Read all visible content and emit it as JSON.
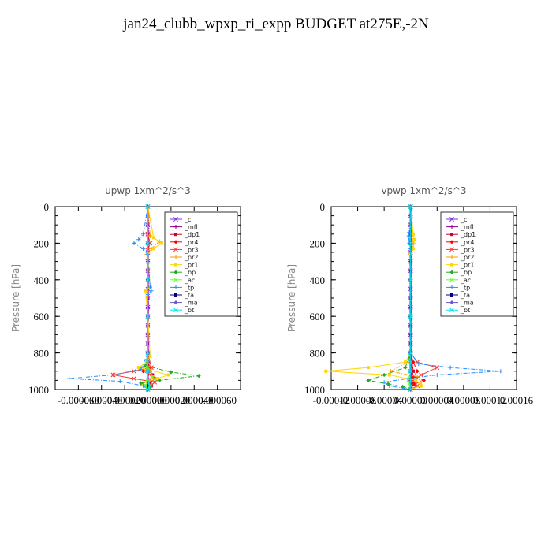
{
  "title": "jan24_clubb_wpxp_ri_expp  BUDGET at275E,-2N",
  "chart_data": [
    {
      "type": "line",
      "title": "upwp   1xm^2/s^3",
      "ylabel": "Pressure [hPa]",
      "xlim": [
        -8e-05,
        8e-05
      ],
      "ylim": [
        1000,
        0
      ],
      "x_tick_labels": [
        "-0.000060",
        "-0.000040",
        "-0.000020",
        "0.000000",
        "0.000020",
        "0.000040",
        "0.000060"
      ],
      "x_tick_values": [
        -6e-05,
        -4e-05,
        -2e-05,
        0,
        2e-05,
        4e-05,
        6e-05
      ],
      "y_ticks": [
        0,
        200,
        400,
        600,
        800,
        1000
      ],
      "legend": "top-right",
      "series": [
        {
          "name": "_cl",
          "color": "#8a2be2",
          "x": [
            0,
            0,
            0,
            0,
            0,
            0,
            0,
            0,
            0,
            0,
            0,
            0,
            0,
            0,
            0,
            0,
            0,
            0,
            0,
            0,
            0,
            0
          ],
          "y": [
            0,
            50,
            100,
            150,
            200,
            250,
            300,
            350,
            400,
            450,
            500,
            550,
            600,
            650,
            700,
            750,
            800,
            850,
            900,
            950,
            980,
            1000
          ]
        },
        {
          "name": "_mfl",
          "color": "#8b008b",
          "x": [
            0,
            0,
            0,
            0,
            0,
            0,
            0,
            0,
            0,
            0,
            0,
            0,
            0,
            0,
            0,
            0,
            0,
            0,
            0,
            0,
            0,
            0
          ],
          "y": [
            0,
            50,
            100,
            150,
            200,
            250,
            300,
            350,
            400,
            450,
            500,
            550,
            600,
            650,
            700,
            750,
            800,
            850,
            900,
            950,
            980,
            1000
          ]
        },
        {
          "name": "_dp1",
          "color": "#cc0033",
          "x": [
            0,
            0,
            0,
            0,
            0,
            0,
            0,
            0,
            2e-06,
            4e-06,
            6e-06,
            2e-06,
            3e-06,
            0
          ],
          "y": [
            0,
            200,
            400,
            600,
            800,
            840,
            860,
            880,
            900,
            920,
            940,
            960,
            980,
            1000
          ]
        },
        {
          "name": "_pr4",
          "color": "#ff0000",
          "x": [
            0,
            0,
            0,
            0,
            0,
            0,
            2e-06,
            -4e-06,
            3e-06,
            2e-06,
            -1e-06,
            0
          ],
          "y": [
            0,
            200,
            400,
            600,
            800,
            850,
            880,
            900,
            920,
            950,
            980,
            1000
          ]
        },
        {
          "name": "_pr3",
          "color": "#ff3333",
          "x": [
            0,
            0,
            2e-06,
            0,
            0,
            0,
            0,
            3e-06,
            -1.2e-05,
            -3e-05,
            -1.2e-05,
            6e-06,
            2e-06,
            0
          ],
          "y": [
            0,
            150,
            200,
            240,
            400,
            600,
            800,
            880,
            900,
            920,
            940,
            960,
            980,
            1000
          ]
        },
        {
          "name": "_pr2",
          "color": "#ff9900",
          "x": [
            0,
            2e-06,
            1e-05,
            3e-06,
            -1e-06,
            0,
            0,
            -2e-06,
            -4e-06,
            -2e-06,
            4e-06,
            -1e-06,
            3e-06,
            0
          ],
          "y": [
            0,
            160,
            190,
            230,
            260,
            400,
            800,
            860,
            880,
            900,
            930,
            960,
            980,
            1000
          ]
        },
        {
          "name": "_pr1",
          "color": "#ffd700",
          "x": [
            0,
            5e-06,
            1.2e-05,
            5e-06,
            0,
            2e-06,
            -2e-06,
            0,
            2e-06,
            -1e-06,
            -8e-06,
            1.8e-05,
            8e-06,
            -6e-06,
            0
          ],
          "y": [
            0,
            170,
            200,
            230,
            260,
            440,
            460,
            600,
            820,
            850,
            880,
            920,
            940,
            970,
            1000
          ]
        },
        {
          "name": "_bp",
          "color": "#22aa22",
          "x": [
            0,
            0,
            0,
            0,
            0,
            -2e-06,
            2e-05,
            4.4e-05,
            1e-05,
            -6e-06,
            2e-06,
            0
          ],
          "y": [
            0,
            200,
            400,
            600,
            800,
            870,
            905,
            925,
            950,
            965,
            985,
            1000
          ]
        },
        {
          "name": "_ac",
          "color": "#66ff33",
          "x": [
            0,
            0,
            0,
            0,
            0,
            0,
            2e-06,
            4e-06,
            0,
            -2e-06,
            0
          ],
          "y": [
            0,
            200,
            400,
            600,
            800,
            880,
            900,
            930,
            960,
            980,
            1000
          ]
        },
        {
          "name": "_tp",
          "color": "#1e90ff",
          "x": [
            0,
            -4e-06,
            -8e-06,
            -1.2e-05,
            -4e-06,
            0,
            2e-06,
            3e-06,
            0,
            0,
            0,
            -6e-06,
            -3e-05,
            -6.8e-05,
            -2.4e-05,
            -4e-06,
            0
          ],
          "y": [
            0,
            150,
            180,
            200,
            230,
            260,
            440,
            460,
            480,
            600,
            800,
            890,
            920,
            940,
            955,
            980,
            1000
          ]
        },
        {
          "name": "_ta",
          "color": "#000080",
          "x": [
            0,
            0,
            0,
            0,
            0,
            0,
            0
          ],
          "y": [
            0,
            200,
            400,
            600,
            800,
            900,
            1000
          ]
        },
        {
          "name": "_ma",
          "color": "#6a5acd",
          "x": [
            0,
            0,
            0,
            0,
            0,
            0,
            0
          ],
          "y": [
            0,
            200,
            400,
            600,
            800,
            900,
            1000
          ]
        },
        {
          "name": "_bt",
          "color": "#00e5ee",
          "x": [
            0,
            0,
            0,
            0,
            0,
            0,
            0,
            0,
            2e-06,
            0
          ],
          "y": [
            0,
            200,
            400,
            600,
            800,
            850,
            900,
            950,
            980,
            1000
          ]
        }
      ]
    },
    {
      "type": "line",
      "title": "vpwp   1xm^2/s^3",
      "ylabel": "Pressure [hPa]",
      "xlim": [
        -0.00012,
        0.00016
      ],
      "ylim": [
        1000,
        0
      ],
      "x_tick_labels": [
        "-0.00012",
        "-0.00008",
        "-0.00004",
        "0.00000",
        "0.00004",
        "0.00008",
        "0.00012",
        "0.00016"
      ],
      "x_tick_values": [
        -0.00012,
        -8e-05,
        -4e-05,
        0,
        4e-05,
        8e-05,
        0.00012,
        0.00016
      ],
      "y_ticks": [
        0,
        200,
        400,
        600,
        800,
        1000
      ],
      "legend": "top-right",
      "series": [
        {
          "name": "_cl",
          "color": "#8a2be2",
          "x": [
            0,
            0,
            0,
            0,
            0,
            0,
            0,
            0,
            0,
            0,
            0,
            0,
            0,
            0,
            0,
            0,
            0,
            0,
            0,
            0,
            0,
            0
          ],
          "y": [
            0,
            50,
            100,
            150,
            200,
            250,
            300,
            350,
            400,
            450,
            500,
            550,
            600,
            650,
            700,
            750,
            800,
            850,
            900,
            950,
            980,
            1000
          ]
        },
        {
          "name": "_mfl",
          "color": "#8b008b",
          "x": [
            0,
            0,
            0,
            0,
            0,
            0,
            0,
            0,
            0,
            0,
            0,
            0,
            0,
            0,
            0,
            0,
            0,
            0,
            0,
            0,
            0,
            0
          ],
          "y": [
            0,
            50,
            100,
            150,
            200,
            250,
            300,
            350,
            400,
            450,
            500,
            550,
            600,
            650,
            700,
            750,
            800,
            850,
            900,
            950,
            980,
            1000
          ]
        },
        {
          "name": "_dp1",
          "color": "#cc0033",
          "x": [
            0,
            0,
            0,
            0,
            0,
            4e-06,
            2e-06,
            3e-06,
            0
          ],
          "y": [
            0,
            200,
            400,
            600,
            800,
            900,
            940,
            970,
            1000
          ]
        },
        {
          "name": "_pr4",
          "color": "#ff0000",
          "x": [
            0,
            0,
            0,
            0,
            0,
            4e-06,
            1e-05,
            4e-06,
            2e-05,
            6e-06,
            0
          ],
          "y": [
            0,
            200,
            400,
            600,
            800,
            850,
            900,
            930,
            950,
            970,
            1000
          ]
        },
        {
          "name": "_pr3",
          "color": "#ff3333",
          "x": [
            0,
            0,
            0,
            0,
            0,
            1e-05,
            4e-05,
            1.6e-05,
            4e-06,
            1e-05,
            0
          ],
          "y": [
            0,
            200,
            400,
            600,
            800,
            850,
            880,
            920,
            950,
            980,
            1000
          ]
        },
        {
          "name": "_pr2",
          "color": "#ff9900",
          "x": [
            0,
            3e-06,
            4e-06,
            3e-06,
            0,
            0,
            0,
            -4e-06,
            -3e-05,
            1e-05,
            1.6e-05,
            1.6e-05,
            0
          ],
          "y": [
            0,
            150,
            200,
            230,
            260,
            600,
            800,
            850,
            900,
            930,
            960,
            980,
            1000
          ]
        },
        {
          "name": "_pr1",
          "color": "#ffd700",
          "x": [
            0,
            4e-06,
            6e-06,
            4e-06,
            0,
            0,
            0,
            -8e-06,
            -6.4e-05,
            -0.000128,
            -3.2e-05,
            8e-06,
            1.6e-05,
            0
          ],
          "y": [
            0,
            150,
            180,
            230,
            260,
            600,
            800,
            850,
            880,
            900,
            920,
            950,
            980,
            1000
          ]
        },
        {
          "name": "_bp",
          "color": "#22aa22",
          "x": [
            0,
            0,
            0,
            0,
            0,
            -8e-06,
            -4e-05,
            -6.4e-05,
            -3.4e-05,
            -1.2e-05,
            0
          ],
          "y": [
            0,
            200,
            400,
            600,
            800,
            880,
            920,
            950,
            970,
            985,
            1000
          ]
        },
        {
          "name": "_ac",
          "color": "#66ff33",
          "x": [
            0,
            0,
            0,
            0,
            0,
            0,
            -4e-06,
            0,
            0
          ],
          "y": [
            0,
            200,
            400,
            600,
            800,
            900,
            950,
            980,
            1000
          ]
        },
        {
          "name": "_tp",
          "color": "#1e90ff",
          "x": [
            0,
            -2e-06,
            -3e-06,
            -2e-06,
            0,
            0,
            0,
            1.2e-05,
            6e-05,
            0.000136,
            4e-05,
            -4e-06,
            -4e-05,
            -3.2e-05,
            0
          ],
          "y": [
            0,
            140,
            160,
            200,
            230,
            600,
            800,
            860,
            880,
            900,
            920,
            940,
            960,
            980,
            1000
          ]
        },
        {
          "name": "_ta",
          "color": "#000080",
          "x": [
            0,
            0,
            0,
            0,
            0,
            0,
            0
          ],
          "y": [
            0,
            200,
            400,
            600,
            800,
            900,
            1000
          ]
        },
        {
          "name": "_ma",
          "color": "#6a5acd",
          "x": [
            0,
            0,
            0,
            0,
            0,
            0,
            0
          ],
          "y": [
            0,
            200,
            400,
            600,
            800,
            900,
            1000
          ]
        },
        {
          "name": "_bt",
          "color": "#00e5ee",
          "x": [
            0,
            0,
            0,
            0,
            0,
            0,
            0,
            0,
            0
          ],
          "y": [
            0,
            200,
            400,
            600,
            800,
            850,
            900,
            950,
            1000
          ]
        }
      ]
    }
  ]
}
